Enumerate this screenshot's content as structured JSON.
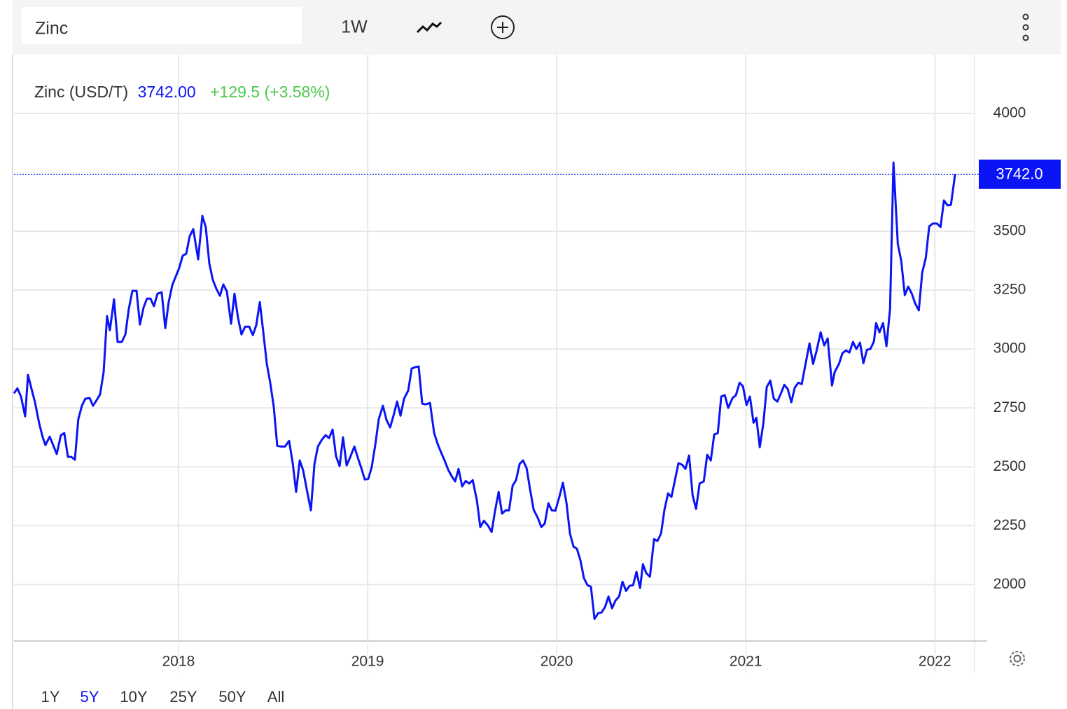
{
  "toolbar": {
    "search": "Zinc",
    "interval": "1W"
  },
  "ranges": [
    {
      "label": "1Y",
      "active": false
    },
    {
      "label": "5Y",
      "active": true
    },
    {
      "label": "10Y",
      "active": false
    },
    {
      "label": "25Y",
      "active": false
    },
    {
      "label": "50Y",
      "active": false
    },
    {
      "label": "All",
      "active": false
    }
  ],
  "chart_data": {
    "type": "line",
    "legend_value": {
      "value": 3742,
      "label": "3742.00"
    },
    "change_label": "+129.5 (+3.58%)",
    "change_color": "#4cc94c",
    "price_tag": {
      "value": 3742,
      "label": "3742.0"
    },
    "xlim": [
      2017.13,
      2022.21
    ],
    "xticks": [
      2018,
      2019,
      2020,
      2021,
      2022
    ],
    "ylim": [
      1760,
      4250
    ],
    "yticks": [
      2000,
      2250,
      2500,
      2750,
      3000,
      3250,
      3500,
      4000
    ],
    "grid": true,
    "x": [
      2017.13,
      2017.148,
      2017.167,
      2017.189,
      2017.204,
      2017.222,
      2017.241,
      2017.263,
      2017.281,
      2017.296,
      2017.319,
      2017.337,
      2017.356,
      2017.378,
      2017.396,
      2017.415,
      2017.433,
      2017.452,
      2017.47,
      2017.489,
      2017.507,
      2017.53,
      2017.548,
      2017.567,
      2017.585,
      2017.604,
      2017.622,
      2017.637,
      2017.659,
      2017.678,
      2017.7,
      2017.719,
      2017.737,
      2017.756,
      2017.778,
      2017.796,
      2017.815,
      2017.833,
      2017.852,
      2017.87,
      2017.889,
      2017.911,
      2017.93,
      2017.948,
      2017.967,
      2017.985,
      2018.004,
      2018.022,
      2018.041,
      2018.059,
      2018.078,
      2018.104,
      2018.126,
      2018.144,
      2018.163,
      2018.181,
      2018.2,
      2018.219,
      2018.237,
      2018.256,
      2018.278,
      2018.296,
      2018.315,
      2018.333,
      2018.352,
      2018.374,
      2018.393,
      2018.411,
      2018.43,
      2018.448,
      2018.467,
      2018.485,
      2018.504,
      2018.522,
      2018.544,
      2018.563,
      2018.585,
      2018.604,
      2018.622,
      2018.641,
      2018.659,
      2018.678,
      2018.7,
      2018.719,
      2018.737,
      2018.759,
      2018.778,
      2018.796,
      2018.815,
      2018.833,
      2018.852,
      2018.87,
      2018.889,
      2018.907,
      2018.93,
      2018.948,
      2018.967,
      2018.985,
      2019.004,
      2019.022,
      2019.041,
      2019.059,
      2019.081,
      2019.1,
      2019.119,
      2019.137,
      2019.156,
      2019.174,
      2019.193,
      2019.215,
      2019.233,
      2019.252,
      2019.27,
      2019.289,
      2019.307,
      2019.33,
      2019.352,
      2019.37,
      2019.389,
      2019.407,
      2019.426,
      2019.444,
      2019.463,
      2019.481,
      2019.5,
      2019.519,
      2019.537,
      2019.556,
      2019.578,
      2019.596,
      2019.615,
      2019.637,
      2019.656,
      2019.674,
      2019.693,
      2019.711,
      2019.73,
      2019.748,
      2019.767,
      2019.785,
      2019.804,
      2019.822,
      2019.841,
      2019.859,
      2019.878,
      2019.9,
      2019.919,
      2019.937,
      2019.956,
      2019.974,
      2019.993,
      2020.015,
      2020.033,
      2020.052,
      2020.07,
      2020.089,
      2020.107,
      2020.126,
      2020.144,
      2020.163,
      2020.181,
      2020.2,
      2020.219,
      2020.237,
      2020.256,
      2020.274,
      2020.293,
      2020.311,
      2020.33,
      2020.348,
      2020.367,
      2020.385,
      2020.404,
      2020.422,
      2020.441,
      2020.456,
      2020.474,
      2020.493,
      2020.515,
      2020.533,
      2020.552,
      2020.57,
      2020.589,
      2020.607,
      2020.626,
      2020.644,
      2020.663,
      2020.681,
      2020.7,
      2020.719,
      2020.737,
      2020.756,
      2020.778,
      2020.796,
      2020.815,
      2020.833,
      2020.852,
      2020.87,
      2020.889,
      2020.907,
      2020.93,
      2020.948,
      2020.967,
      2020.985,
      2021.004,
      2021.022,
      2021.041,
      2021.056,
      2021.074,
      2021.093,
      2021.111,
      2021.13,
      2021.148,
      2021.167,
      2021.185,
      2021.204,
      2021.222,
      2021.241,
      2021.259,
      2021.278,
      2021.296,
      2021.315,
      2021.337,
      2021.356,
      2021.374,
      2021.396,
      2021.415,
      2021.433,
      2021.456,
      2021.47,
      2021.493,
      2021.511,
      2021.53,
      2021.548,
      2021.567,
      2021.585,
      2021.604,
      2021.622,
      2021.641,
      2021.659,
      2021.678,
      2021.689,
      2021.707,
      2021.726,
      2021.744,
      2021.763,
      2021.781,
      2021.804,
      2021.822,
      2021.841,
      2021.859,
      2021.878,
      2021.896,
      2021.915,
      2021.933,
      2021.952,
      2021.97,
      2021.989,
      2022.011,
      2022.03,
      2022.048,
      2022.067,
      2022.085,
      2022.107
    ],
    "series": [
      {
        "name": "Zinc (USD/T)",
        "color": "#0a14f5",
        "values": [
          2812,
          2833,
          2798,
          2714,
          2890,
          2833,
          2774,
          2685,
          2628,
          2592,
          2628,
          2592,
          2554,
          2634,
          2643,
          2542,
          2542,
          2530,
          2702,
          2759,
          2789,
          2792,
          2759,
          2783,
          2807,
          2902,
          3140,
          3080,
          3211,
          3030,
          3030,
          3062,
          3170,
          3247,
          3247,
          3104,
          3176,
          3214,
          3214,
          3182,
          3235,
          3241,
          3089,
          3199,
          3271,
          3307,
          3345,
          3396,
          3405,
          3479,
          3509,
          3381,
          3565,
          3518,
          3363,
          3295,
          3256,
          3226,
          3274,
          3244,
          3107,
          3235,
          3131,
          3062,
          3095,
          3095,
          3059,
          3101,
          3199,
          3074,
          2937,
          2857,
          2753,
          2589,
          2586,
          2586,
          2610,
          2515,
          2393,
          2527,
          2485,
          2405,
          2315,
          2512,
          2586,
          2616,
          2634,
          2622,
          2658,
          2545,
          2503,
          2625,
          2506,
          2539,
          2586,
          2539,
          2494,
          2446,
          2449,
          2500,
          2595,
          2702,
          2759,
          2699,
          2667,
          2717,
          2777,
          2717,
          2789,
          2824,
          2917,
          2923,
          2926,
          2768,
          2765,
          2771,
          2643,
          2598,
          2560,
          2527,
          2488,
          2461,
          2438,
          2491,
          2417,
          2440,
          2429,
          2443,
          2357,
          2244,
          2271,
          2250,
          2223,
          2313,
          2393,
          2301,
          2315,
          2315,
          2420,
          2443,
          2512,
          2527,
          2494,
          2405,
          2318,
          2283,
          2244,
          2259,
          2345,
          2315,
          2313,
          2375,
          2432,
          2345,
          2217,
          2161,
          2152,
          2101,
          2027,
          1997,
          1991,
          1854,
          1878,
          1881,
          1905,
          1949,
          1899,
          1932,
          1949,
          2012,
          1973,
          1994,
          1997,
          2054,
          1985,
          2086,
          2048,
          2033,
          2193,
          2185,
          2217,
          2318,
          2387,
          2372,
          2446,
          2515,
          2509,
          2491,
          2548,
          2378,
          2321,
          2429,
          2438,
          2551,
          2527,
          2637,
          2643,
          2798,
          2804,
          2750,
          2792,
          2804,
          2857,
          2842,
          2762,
          2798,
          2687,
          2708,
          2583,
          2685,
          2839,
          2866,
          2789,
          2777,
          2810,
          2848,
          2830,
          2774,
          2836,
          2857,
          2851,
          2932,
          3024,
          2937,
          2991,
          3071,
          3015,
          3045,
          2845,
          2902,
          2937,
          2982,
          2994,
          2985,
          3030,
          3000,
          3027,
          2940,
          2997,
          3000,
          3033,
          3110,
          3071,
          3110,
          3012,
          3170,
          3792,
          3446,
          3375,
          3229,
          3265,
          3235,
          3193,
          3164,
          3324,
          3387,
          3521,
          3533,
          3533,
          3518,
          3631,
          3610,
          3613,
          3742
        ]
      }
    ]
  }
}
